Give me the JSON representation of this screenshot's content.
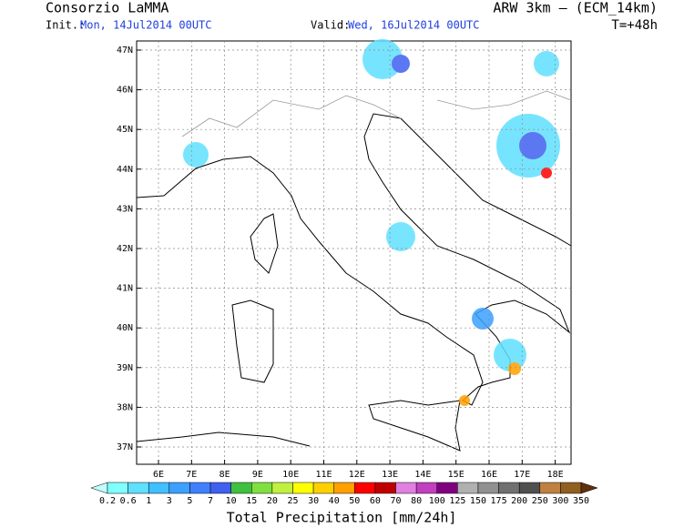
{
  "header": {
    "title": "Consorzio LaMMA",
    "model": "ARW 3km – (ECM_14km)",
    "init_label": "Init.:",
    "init": "Mon, 14Jul2014 00UTC",
    "valid_label": "Valid:",
    "valid": "Wed, 16Jul2014 00UTC",
    "lead": "T=+48h"
  },
  "map": {
    "lon_labels": [
      "6E",
      "7E",
      "8E",
      "9E",
      "10E",
      "11E",
      "12E",
      "13E",
      "14E",
      "15E",
      "16E",
      "17E",
      "18E"
    ],
    "lat_labels": [
      "47N",
      "46N",
      "45N",
      "44N",
      "43N",
      "42N",
      "41N",
      "40N",
      "39N",
      "38N",
      "37N"
    ]
  },
  "colorbar": {
    "labels": [
      "0.2",
      "0.6",
      "1",
      "3",
      "5",
      "7",
      "10",
      "15",
      "20",
      "25",
      "30",
      "40",
      "50",
      "60",
      "70",
      "80",
      "100",
      "125",
      "150",
      "175",
      "200",
      "250",
      "300",
      "350"
    ],
    "colors": [
      "#c0ffff",
      "#80ffff",
      "#60e0ff",
      "#40c0ff",
      "#3ca0ff",
      "#4080ff",
      "#4060f0",
      "#40c040",
      "#80e040",
      "#c0f040",
      "#ffff00",
      "#ffd000",
      "#ffa000",
      "#ff0000",
      "#c00000",
      "#e080e0",
      "#c040c0",
      "#800080",
      "#b0b0b0",
      "#909090",
      "#707070",
      "#505050",
      "#c08040",
      "#906020",
      "#603010"
    ],
    "title": "Total Precipitation [mm/24h]"
  }
}
